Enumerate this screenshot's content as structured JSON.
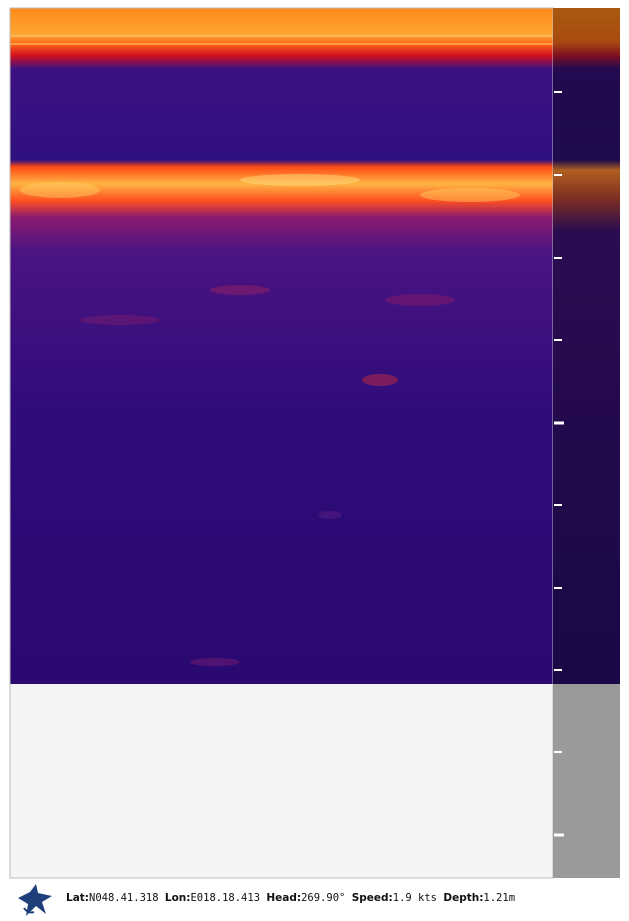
{
  "status": [
    {
      "label": "Lat:",
      "value": "N048.41.318"
    },
    {
      "label": "Lon:",
      "value": "E018.18.413"
    },
    {
      "label": "Head:",
      "value": "269.90°"
    },
    {
      "label": "Speed:",
      "value": "1.9 kts"
    },
    {
      "label": "Depth:",
      "value": "1.21m"
    }
  ]
}
